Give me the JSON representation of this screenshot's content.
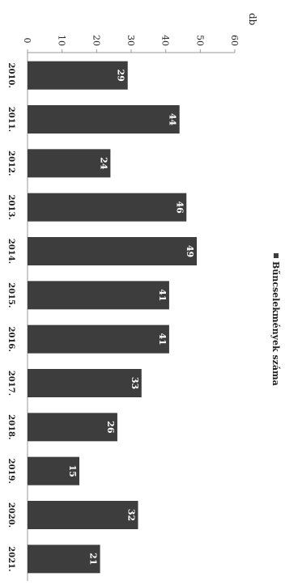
{
  "chart_data": {
    "type": "bar",
    "orientation": "horizontal-rotated",
    "categories": [
      "2010.",
      "2011.",
      "2012.",
      "2013.",
      "2014.",
      "2015.",
      "2016.",
      "2017.",
      "2018.",
      "2019.",
      "2020.",
      "2021."
    ],
    "series": [
      {
        "name": "Bűncselekmények száma",
        "values": [
          29,
          44,
          24,
          46,
          49,
          41,
          41,
          33,
          26,
          15,
          32,
          21
        ]
      }
    ],
    "ylabel": "db",
    "ylim": [
      0,
      60
    ],
    "yticks": [
      0,
      10,
      20,
      30,
      40,
      50,
      60
    ],
    "grid": false,
    "legend": "right",
    "colors": {
      "bar": "#3d3d3d",
      "value_label": "#ffffff",
      "axis": "#999999"
    }
  }
}
